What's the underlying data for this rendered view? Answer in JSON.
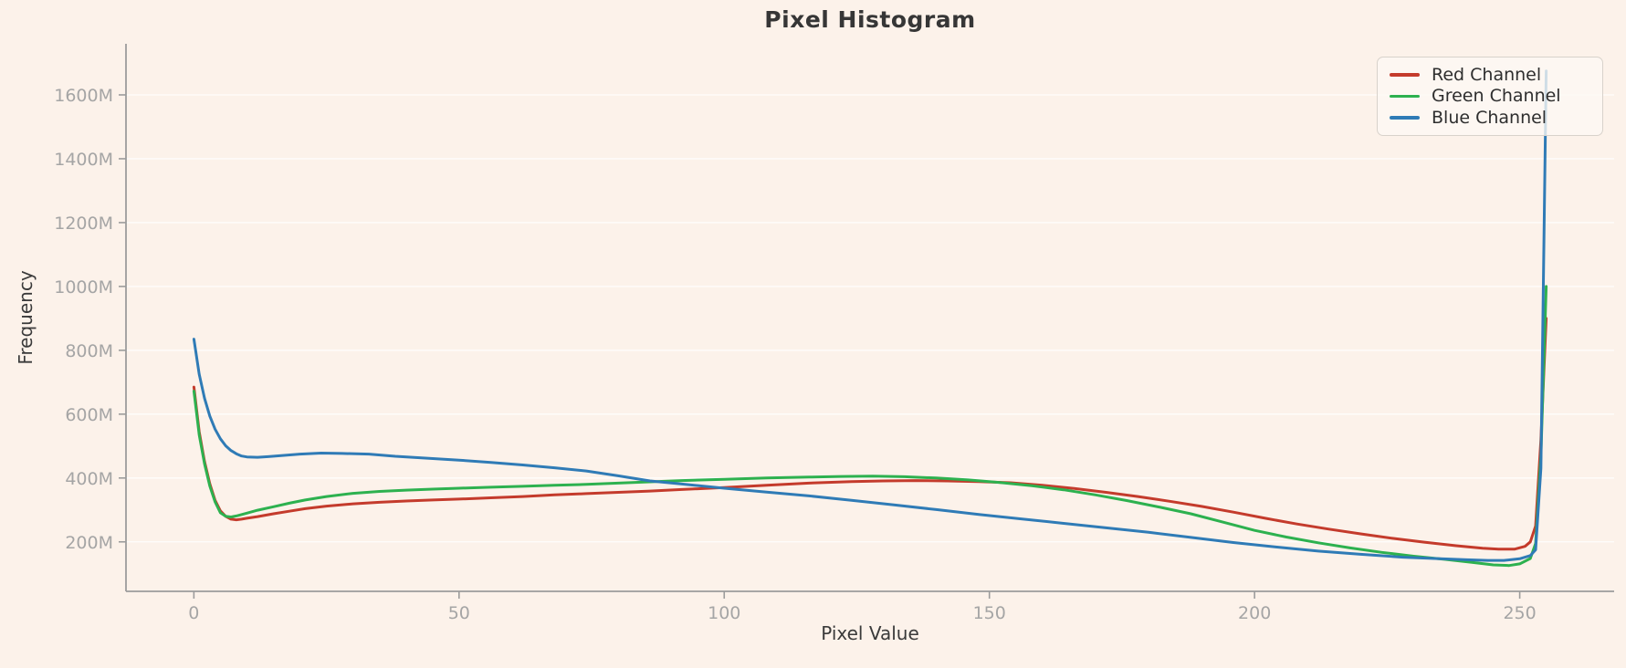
{
  "title": "Pixel Histogram",
  "x_axis": {
    "label": "Pixel Value",
    "ticks": [
      {
        "value": 0,
        "label": "0"
      },
      {
        "value": 50,
        "label": "50"
      },
      {
        "value": 100,
        "label": "100"
      },
      {
        "value": 150,
        "label": "150"
      },
      {
        "value": 200,
        "label": "200"
      },
      {
        "value": 250,
        "label": "250"
      }
    ]
  },
  "y_axis": {
    "label": "Frequency",
    "ticks": [
      {
        "value": 200,
        "label": "200M"
      },
      {
        "value": 400,
        "label": "400M"
      },
      {
        "value": 600,
        "label": "600M"
      },
      {
        "value": 800,
        "label": "800M"
      },
      {
        "value": 1000,
        "label": "1000M"
      },
      {
        "value": 1200,
        "label": "1200M"
      },
      {
        "value": 1400,
        "label": "1400M"
      },
      {
        "value": 1600,
        "label": "1600M"
      }
    ]
  },
  "legend": {
    "position": "upper-right",
    "items": [
      {
        "label": "Red Channel",
        "color": "#c43b2c"
      },
      {
        "label": "Green Channel",
        "color": "#2db14f"
      },
      {
        "label": "Blue Channel",
        "color": "#2f7bb6"
      }
    ]
  },
  "colors": {
    "background": "#fcf2ea",
    "gridline": "rgba(255,255,255,0.85)",
    "spine": "#9c9c9c",
    "tick_label": "#a5a5a5",
    "text": "#3a3a3a",
    "red_series": "#c43b2c",
    "green_series": "#2db14f",
    "blue_series": "#2f7bb6"
  },
  "chart_data": {
    "type": "line",
    "title": "Pixel Histogram",
    "xlabel": "Pixel Value",
    "ylabel": "Frequency",
    "y_unit": "millions (M)",
    "xlim": [
      -12.8,
      267.8
    ],
    "ylim": [
      45,
      1760
    ],
    "grid": "horizontal-only",
    "legend_position": "upper right",
    "line_width": 3,
    "series": [
      {
        "name": "Red Channel",
        "color": "#c43b2c",
        "points": [
          [
            0,
            685
          ],
          [
            1,
            545
          ],
          [
            2,
            452
          ],
          [
            3,
            382
          ],
          [
            4,
            330
          ],
          [
            5,
            297
          ],
          [
            6,
            280
          ],
          [
            7,
            271
          ],
          [
            8,
            269
          ],
          [
            9,
            271
          ],
          [
            10,
            274
          ],
          [
            12,
            279
          ],
          [
            15,
            288
          ],
          [
            18,
            296
          ],
          [
            21,
            304
          ],
          [
            25,
            312
          ],
          [
            30,
            319
          ],
          [
            35,
            324
          ],
          [
            40,
            328
          ],
          [
            45,
            331
          ],
          [
            50,
            334
          ],
          [
            56,
            338
          ],
          [
            62,
            342
          ],
          [
            68,
            347
          ],
          [
            74,
            351
          ],
          [
            80,
            355
          ],
          [
            86,
            359
          ],
          [
            92,
            364
          ],
          [
            100,
            370
          ],
          [
            108,
            377
          ],
          [
            116,
            384
          ],
          [
            124,
            389
          ],
          [
            130,
            391
          ],
          [
            136,
            392
          ],
          [
            142,
            391
          ],
          [
            148,
            389
          ],
          [
            154,
            385
          ],
          [
            160,
            377
          ],
          [
            166,
            367
          ],
          [
            172,
            355
          ],
          [
            178,
            342
          ],
          [
            184,
            327
          ],
          [
            190,
            311
          ],
          [
            196,
            293
          ],
          [
            202,
            274
          ],
          [
            208,
            256
          ],
          [
            214,
            240
          ],
          [
            220,
            225
          ],
          [
            226,
            211
          ],
          [
            232,
            199
          ],
          [
            238,
            188
          ],
          [
            243,
            180
          ],
          [
            246,
            177
          ],
          [
            249,
            177
          ],
          [
            251,
            186
          ],
          [
            252,
            200
          ],
          [
            253,
            250
          ],
          [
            254,
            520
          ],
          [
            255,
            900
          ]
        ]
      },
      {
        "name": "Green Channel",
        "color": "#2db14f",
        "points": [
          [
            0,
            672
          ],
          [
            1,
            535
          ],
          [
            2,
            445
          ],
          [
            3,
            375
          ],
          [
            4,
            325
          ],
          [
            5,
            291
          ],
          [
            6,
            280
          ],
          [
            7,
            278
          ],
          [
            8,
            281
          ],
          [
            10,
            290
          ],
          [
            12,
            299
          ],
          [
            15,
            310
          ],
          [
            18,
            321
          ],
          [
            21,
            331
          ],
          [
            25,
            342
          ],
          [
            30,
            352
          ],
          [
            35,
            358
          ],
          [
            40,
            362
          ],
          [
            45,
            365
          ],
          [
            50,
            368
          ],
          [
            56,
            371
          ],
          [
            62,
            374
          ],
          [
            68,
            377
          ],
          [
            74,
            380
          ],
          [
            80,
            384
          ],
          [
            86,
            388
          ],
          [
            92,
            392
          ],
          [
            100,
            396
          ],
          [
            108,
            400
          ],
          [
            116,
            403
          ],
          [
            122,
            405
          ],
          [
            128,
            406
          ],
          [
            134,
            404
          ],
          [
            140,
            400
          ],
          [
            146,
            394
          ],
          [
            152,
            386
          ],
          [
            158,
            376
          ],
          [
            164,
            363
          ],
          [
            170,
            347
          ],
          [
            176,
            329
          ],
          [
            182,
            309
          ],
          [
            188,
            288
          ],
          [
            194,
            262
          ],
          [
            200,
            236
          ],
          [
            206,
            215
          ],
          [
            212,
            197
          ],
          [
            218,
            181
          ],
          [
            224,
            167
          ],
          [
            230,
            155
          ],
          [
            236,
            145
          ],
          [
            241,
            136
          ],
          [
            245,
            128
          ],
          [
            248,
            126
          ],
          [
            250,
            131
          ],
          [
            252,
            148
          ],
          [
            253,
            195
          ],
          [
            254,
            470
          ],
          [
            255,
            1000
          ]
        ]
      },
      {
        "name": "Blue Channel",
        "color": "#2f7bb6",
        "points": [
          [
            0,
            835
          ],
          [
            1,
            725
          ],
          [
            2,
            650
          ],
          [
            3,
            594
          ],
          [
            4,
            553
          ],
          [
            5,
            523
          ],
          [
            6,
            501
          ],
          [
            7,
            486
          ],
          [
            8,
            476
          ],
          [
            9,
            469
          ],
          [
            10,
            466
          ],
          [
            12,
            465
          ],
          [
            14,
            467
          ],
          [
            17,
            471
          ],
          [
            20,
            475
          ],
          [
            24,
            478
          ],
          [
            28,
            477
          ],
          [
            33,
            475
          ],
          [
            38,
            468
          ],
          [
            44,
            462
          ],
          [
            50,
            456
          ],
          [
            56,
            449
          ],
          [
            62,
            441
          ],
          [
            68,
            432
          ],
          [
            74,
            422
          ],
          [
            80,
            407
          ],
          [
            86,
            391
          ],
          [
            92,
            381
          ],
          [
            100,
            368
          ],
          [
            108,
            356
          ],
          [
            116,
            344
          ],
          [
            124,
            330
          ],
          [
            132,
            316
          ],
          [
            140,
            301
          ],
          [
            148,
            286
          ],
          [
            156,
            272
          ],
          [
            164,
            258
          ],
          [
            172,
            244
          ],
          [
            180,
            230
          ],
          [
            188,
            214
          ],
          [
            196,
            198
          ],
          [
            204,
            184
          ],
          [
            212,
            171
          ],
          [
            220,
            161
          ],
          [
            228,
            152
          ],
          [
            235,
            147
          ],
          [
            240,
            144
          ],
          [
            244,
            142
          ],
          [
            247,
            142
          ],
          [
            250,
            147
          ],
          [
            252,
            157
          ],
          [
            253,
            175
          ],
          [
            254,
            430
          ],
          [
            255,
            1675
          ]
        ]
      }
    ]
  }
}
